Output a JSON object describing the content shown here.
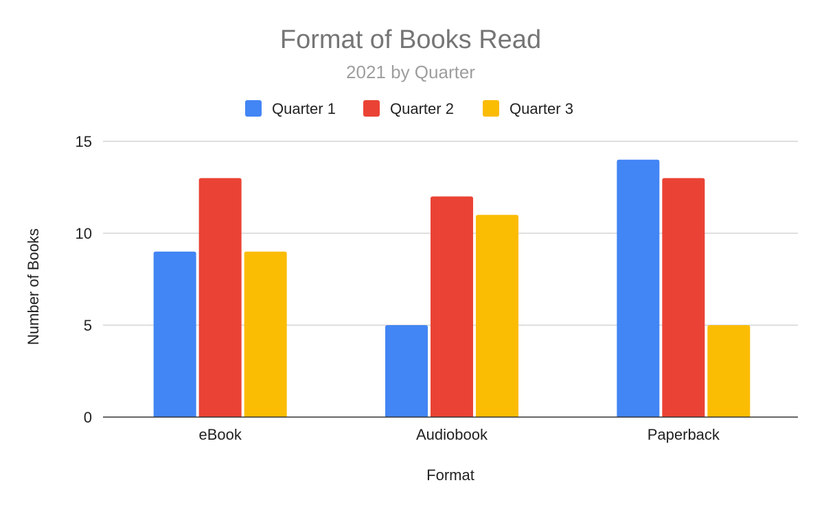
{
  "chart_data": {
    "type": "bar",
    "title": "Format of Books Read",
    "subtitle": "2021 by Quarter",
    "xlabel": "Format",
    "ylabel": "Number of Books",
    "categories": [
      "eBook",
      "Audiobook",
      "Paperback"
    ],
    "series": [
      {
        "name": "Quarter 1",
        "color": "#4285f4",
        "values": [
          9,
          5,
          14
        ]
      },
      {
        "name": "Quarter 2",
        "color": "#ea4335",
        "values": [
          13,
          12,
          13
        ]
      },
      {
        "name": "Quarter 3",
        "color": "#fbbc04",
        "values": [
          9,
          11,
          5
        ]
      }
    ],
    "ylim": [
      0,
      15
    ],
    "yticks": [
      0,
      5,
      10,
      15
    ],
    "grid": true,
    "legend_position": "top"
  }
}
